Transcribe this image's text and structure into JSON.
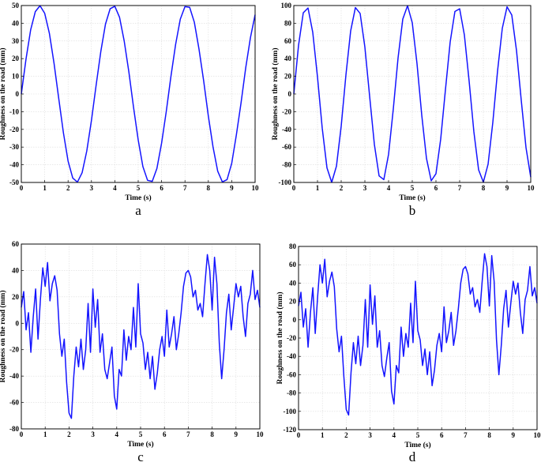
{
  "colors": {
    "series": "#1414ff",
    "axis": "#000000",
    "grid": "#dcdcdc"
  },
  "chart_data": [
    {
      "id": "a",
      "caption": "a",
      "type": "line",
      "xlabel": "Time (s)",
      "ylabel": "Roughness on the road (mm)",
      "xlim": [
        0,
        10
      ],
      "ylim": [
        -50,
        50
      ],
      "xticks": [
        0,
        1,
        2,
        3,
        4,
        5,
        6,
        7,
        8,
        9,
        10
      ],
      "yticks": [
        -50,
        -40,
        -30,
        -20,
        -10,
        0,
        10,
        20,
        30,
        40,
        50
      ],
      "grid": true,
      "series": [
        {
          "x": [
            0,
            0.2,
            0.4,
            0.6,
            0.8,
            1.0,
            1.2,
            1.4,
            1.6,
            1.8,
            2.0,
            2.2,
            2.4,
            2.6,
            2.8,
            3.0,
            3.2,
            3.4,
            3.6,
            3.8,
            4.0,
            4.2,
            4.4,
            4.6,
            4.8,
            5.0,
            5.2,
            5.4,
            5.6,
            5.8,
            6.0,
            6.2,
            6.4,
            6.6,
            6.8,
            7.0,
            7.2,
            7.4,
            7.6,
            7.8,
            8.0,
            8.2,
            8.4,
            8.6,
            8.8,
            9.0,
            9.2,
            9.4,
            9.6,
            9.8,
            10.0
          ],
          "y": [
            0,
            19.7,
            36.3,
            46.6,
            49.9,
            45.6,
            34.3,
            17.3,
            -2.5,
            -21.9,
            -37.9,
            -47.5,
            -49.8,
            -44.5,
            -32.2,
            -14.9,
            5.0,
            24.0,
            39.5,
            48.2,
            49.6,
            43.4,
            30.0,
            12.5,
            -7.5,
            -26.0,
            -41.0,
            -48.8,
            -49.4,
            -42.1,
            -27.8,
            -9.9,
            10.0,
            28.0,
            42.3,
            49.4,
            49.0,
            40.6,
            25.4,
            7.4,
            -12.5,
            -29.9,
            -43.6,
            -49.7,
            -48.4,
            -39.2,
            -23.0,
            -4.9,
            14.9,
            31.8,
            44.8
          ]
        }
      ]
    },
    {
      "id": "b",
      "caption": "b",
      "type": "line",
      "xlabel": "Time (s)",
      "ylabel": "Roughness on the road (mm)",
      "xlim": [
        0,
        10
      ],
      "ylim": [
        -100,
        100
      ],
      "xticks": [
        0,
        1,
        2,
        3,
        4,
        5,
        6,
        7,
        8,
        9,
        10
      ],
      "yticks": [
        -100,
        -80,
        -60,
        -40,
        -20,
        0,
        20,
        40,
        60,
        80,
        100
      ],
      "grid": true,
      "series": [
        {
          "x": [
            0,
            0.2,
            0.4,
            0.6,
            0.8,
            1.0,
            1.2,
            1.4,
            1.6,
            1.8,
            2.0,
            2.2,
            2.4,
            2.6,
            2.8,
            3.0,
            3.2,
            3.4,
            3.6,
            3.8,
            4.0,
            4.2,
            4.4,
            4.6,
            4.8,
            5.0,
            5.2,
            5.4,
            5.6,
            5.8,
            6.0,
            6.2,
            6.4,
            6.6,
            6.8,
            7.0,
            7.2,
            7.4,
            7.6,
            7.8,
            8.0,
            8.2,
            8.4,
            8.6,
            8.8,
            9.0,
            9.2,
            9.4,
            9.6,
            9.8,
            10.0
          ],
          "y": [
            0,
            55.0,
            91.8,
            97.2,
            69.7,
            19.2,
            -38.7,
            -83.5,
            -99.9,
            -81.6,
            -36.5,
            21.5,
            71.3,
            97.7,
            91.0,
            53.0,
            -2.4,
            -56.9,
            -92.6,
            -96.8,
            -68.2,
            -16.8,
            40.7,
            84.7,
            99.8,
            80.5,
            34.3,
            -23.8,
            -72.8,
            -98.1,
            -90.1,
            -51.0,
            4.8,
            58.8,
            93.3,
            96.3,
            66.6,
            14.5,
            -42.7,
            -85.7,
            -99.7,
            -79.3,
            -32.1,
            26.1,
            74.3,
            98.5,
            89.3,
            49.0,
            -7.2,
            -60.6,
            -94.0
          ]
        }
      ]
    },
    {
      "id": "c",
      "caption": "c",
      "type": "line",
      "xlabel": "Time (s)",
      "ylabel": "Roughness on the road (mm)",
      "xlim": [
        0,
        10
      ],
      "ylim": [
        -80,
        60
      ],
      "xticks": [
        0,
        1,
        2,
        3,
        4,
        5,
        6,
        7,
        8,
        9,
        10
      ],
      "yticks": [
        -80,
        -60,
        -40,
        -20,
        0,
        20,
        40,
        60
      ],
      "grid": true,
      "series": [
        {
          "x": [
            0,
            0.1,
            0.2,
            0.3,
            0.4,
            0.5,
            0.6,
            0.7,
            0.8,
            0.9,
            1.0,
            1.1,
            1.2,
            1.3,
            1.4,
            1.5,
            1.6,
            1.7,
            1.8,
            1.9,
            2.0,
            2.1,
            2.2,
            2.3,
            2.4,
            2.5,
            2.6,
            2.7,
            2.8,
            2.9,
            3.0,
            3.1,
            3.2,
            3.3,
            3.4,
            3.5,
            3.6,
            3.7,
            3.8,
            3.9,
            4.0,
            4.1,
            4.2,
            4.3,
            4.4,
            4.5,
            4.6,
            4.7,
            4.8,
            4.9,
            5.0,
            5.1,
            5.2,
            5.3,
            5.4,
            5.5,
            5.6,
            5.7,
            5.8,
            5.9,
            6.0,
            6.1,
            6.2,
            6.3,
            6.4,
            6.5,
            6.6,
            6.7,
            6.8,
            6.9,
            7.0,
            7.1,
            7.2,
            7.3,
            7.4,
            7.5,
            7.6,
            7.7,
            7.8,
            7.9,
            8.0,
            8.1,
            8.2,
            8.3,
            8.4,
            8.5,
            8.6,
            8.7,
            8.8,
            8.9,
            9.0,
            9.1,
            9.2,
            9.3,
            9.4,
            9.5,
            9.6,
            9.7,
            9.8,
            9.9,
            10.0
          ],
          "y": [
            12,
            24,
            -5,
            8,
            -22,
            5,
            26,
            -12,
            18,
            42,
            28,
            46,
            17,
            30,
            36,
            25,
            -8,
            -25,
            -12,
            -45,
            -68,
            -72,
            -40,
            -18,
            -33,
            -12,
            -35,
            -20,
            15,
            -22,
            26,
            -3,
            18,
            -22,
            -8,
            -35,
            -42,
            -30,
            -18,
            -55,
            -65,
            -35,
            -40,
            -5,
            -28,
            -10,
            -20,
            12,
            -18,
            30,
            -8,
            -15,
            -35,
            -22,
            -42,
            -25,
            -50,
            -38,
            -20,
            -10,
            -25,
            10,
            -18,
            -8,
            5,
            -20,
            -8,
            8,
            28,
            38,
            40,
            35,
            20,
            25,
            10,
            15,
            5,
            30,
            52,
            40,
            10,
            50,
            30,
            -15,
            -42,
            -20,
            8,
            22,
            -5,
            12,
            30,
            20,
            28,
            5,
            -10,
            15,
            22,
            40,
            18,
            25,
            12
          ]
        }
      ]
    },
    {
      "id": "d",
      "caption": "d",
      "type": "line",
      "xlabel": "Time (s)",
      "ylabel": "Roughness on the road (mm)",
      "xlim": [
        0,
        10
      ],
      "ylim": [
        -120,
        80
      ],
      "xticks": [
        0,
        1,
        2,
        3,
        4,
        5,
        6,
        7,
        8,
        9,
        10
      ],
      "yticks": [
        -120,
        -100,
        -80,
        -60,
        -40,
        -20,
        0,
        20,
        40,
        60,
        80
      ],
      "grid": true,
      "series": [
        {
          "x": [
            0,
            0.1,
            0.2,
            0.3,
            0.4,
            0.5,
            0.6,
            0.7,
            0.8,
            0.9,
            1.0,
            1.1,
            1.2,
            1.3,
            1.4,
            1.5,
            1.6,
            1.7,
            1.8,
            1.9,
            2.0,
            2.1,
            2.2,
            2.3,
            2.4,
            2.5,
            2.6,
            2.7,
            2.8,
            2.9,
            3.0,
            3.1,
            3.2,
            3.3,
            3.4,
            3.5,
            3.6,
            3.7,
            3.8,
            3.9,
            4.0,
            4.1,
            4.2,
            4.3,
            4.4,
            4.5,
            4.6,
            4.7,
            4.8,
            4.9,
            5.0,
            5.1,
            5.2,
            5.3,
            5.4,
            5.5,
            5.6,
            5.7,
            5.8,
            5.9,
            6.0,
            6.1,
            6.2,
            6.3,
            6.4,
            6.5,
            6.6,
            6.7,
            6.8,
            6.9,
            7.0,
            7.1,
            7.2,
            7.3,
            7.4,
            7.5,
            7.6,
            7.7,
            7.8,
            7.9,
            8.0,
            8.1,
            8.2,
            8.3,
            8.4,
            8.5,
            8.6,
            8.7,
            8.8,
            8.9,
            9.0,
            9.1,
            9.2,
            9.3,
            9.4,
            9.5,
            9.6,
            9.7,
            9.8,
            9.9,
            10.0
          ],
          "y": [
            15,
            30,
            -8,
            12,
            -30,
            8,
            35,
            -15,
            25,
            60,
            40,
            66,
            25,
            42,
            52,
            36,
            -10,
            -35,
            -18,
            -62,
            -98,
            -104,
            -58,
            -25,
            -48,
            -18,
            -50,
            -28,
            22,
            -30,
            38,
            -5,
            26,
            -30,
            -12,
            -50,
            -62,
            -42,
            -25,
            -78,
            -92,
            -50,
            -58,
            -8,
            -40,
            -15,
            -30,
            18,
            -25,
            42,
            -12,
            -22,
            -50,
            -32,
            -60,
            -35,
            -72,
            -55,
            -28,
            -15,
            -35,
            14,
            -25,
            -12,
            8,
            -28,
            -12,
            12,
            40,
            55,
            58,
            50,
            28,
            35,
            14,
            22,
            8,
            42,
            72,
            58,
            15,
            70,
            42,
            -22,
            -60,
            -28,
            12,
            32,
            -8,
            18,
            42,
            28,
            40,
            8,
            -15,
            22,
            32,
            58,
            26,
            35,
            18
          ]
        }
      ]
    }
  ]
}
